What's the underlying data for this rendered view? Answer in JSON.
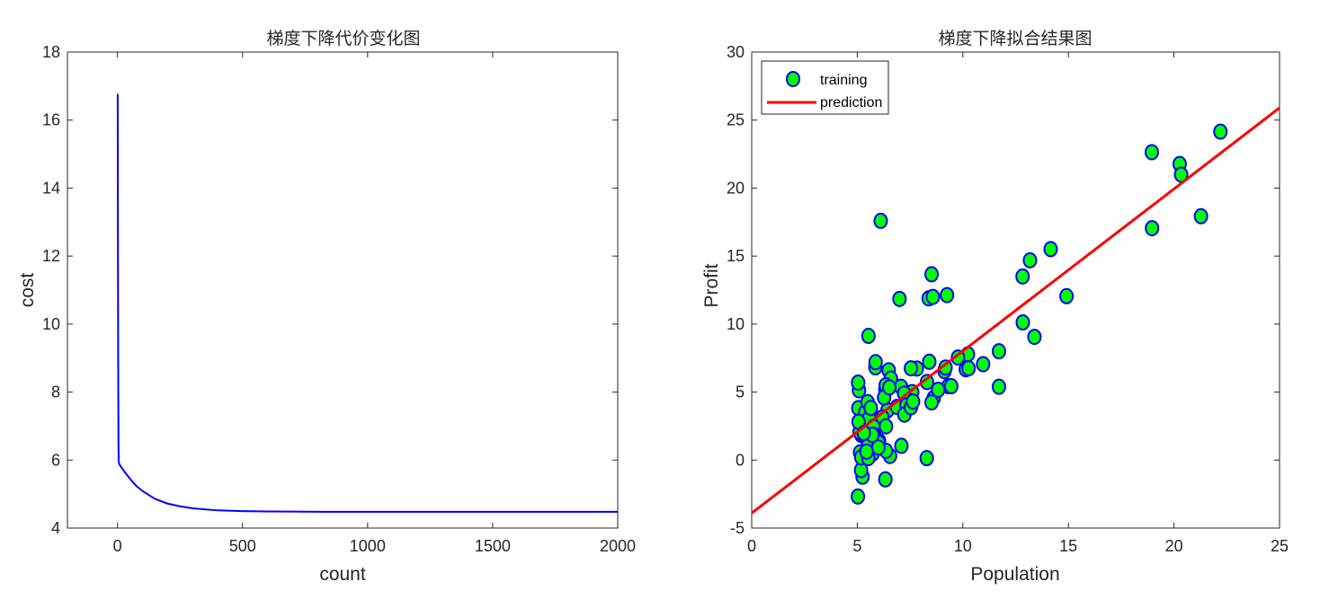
{
  "chart_data": [
    {
      "type": "line",
      "title": "梯度下降代价变化图",
      "xlabel": "count",
      "ylabel": "cost",
      "xlim": [
        -200,
        2000
      ],
      "ylim": [
        4,
        18
      ],
      "xticks": [
        0,
        500,
        1000,
        1500,
        2000
      ],
      "yticks": [
        4,
        6,
        8,
        10,
        12,
        14,
        16,
        18
      ],
      "grid": false,
      "colors": {
        "line": "#0000ff"
      },
      "series": [
        {
          "x": [
            1,
            2,
            3,
            4,
            5,
            8,
            10,
            20,
            30,
            50,
            75,
            100,
            150,
            200,
            250,
            300,
            400,
            500,
            600,
            700,
            800,
            1000,
            1200,
            1500,
            2000
          ],
          "y": [
            16.77,
            12.0,
            8.5,
            6.5,
            5.95,
            5.86,
            5.85,
            5.74,
            5.64,
            5.45,
            5.24,
            5.09,
            4.86,
            4.72,
            4.64,
            4.58,
            4.52,
            4.5,
            4.49,
            4.485,
            4.48,
            4.48,
            4.48,
            4.48,
            4.48
          ]
        }
      ]
    },
    {
      "type": "scatter",
      "title": "梯度下降拟合结果图",
      "xlabel": "Population",
      "ylabel": "Profit",
      "xlim": [
        0,
        25
      ],
      "ylim": [
        -5,
        30
      ],
      "xticks": [
        0,
        5,
        10,
        15,
        20,
        25
      ],
      "yticks": [
        -5,
        0,
        5,
        10,
        15,
        20,
        25,
        30
      ],
      "grid": false,
      "legend_position": "top-left",
      "colors": {
        "marker_fill": "#00ff00",
        "marker_edge": "#0000ff",
        "line": "#ff0000"
      },
      "series": [
        {
          "name": "training",
          "points": [
            [
              6.11,
              17.59
            ],
            [
              5.53,
              9.13
            ],
            [
              8.52,
              13.66
            ],
            [
              7.0,
              11.85
            ],
            [
              5.86,
              6.82
            ],
            [
              8.38,
              11.89
            ],
            [
              7.48,
              4.35
            ],
            [
              8.58,
              12.0
            ],
            [
              6.49,
              6.6
            ],
            [
              5.05,
              3.82
            ],
            [
              5.71,
              3.25
            ],
            [
              14.16,
              15.51
            ],
            [
              5.73,
              3.16
            ],
            [
              8.41,
              7.23
            ],
            [
              5.64,
              0.72
            ],
            [
              5.38,
              3.51
            ],
            [
              6.37,
              5.3
            ],
            [
              5.13,
              0.56
            ],
            [
              6.43,
              3.65
            ],
            [
              7.07,
              5.39
            ],
            [
              6.19,
              3.14
            ],
            [
              20.27,
              21.77
            ],
            [
              5.49,
              4.26
            ],
            [
              6.33,
              5.19
            ],
            [
              5.56,
              3.08
            ],
            [
              18.95,
              22.64
            ],
            [
              12.83,
              13.5
            ],
            [
              10.96,
              7.05
            ],
            [
              13.18,
              14.69
            ],
            [
              22.2,
              24.15
            ],
            [
              5.25,
              -1.22
            ],
            [
              6.59,
              5.99
            ],
            [
              9.25,
              12.13
            ],
            [
              5.19,
              1.85
            ],
            [
              9.13,
              6.54
            ],
            [
              8.62,
              4.56
            ],
            [
              12.84,
              10.12
            ],
            [
              6.35,
              5.5
            ],
            [
              5.41,
              0.56
            ],
            [
              6.88,
              3.91
            ],
            [
              11.71,
              5.39
            ],
            [
              5.77,
              2.44
            ],
            [
              7.82,
              6.73
            ],
            [
              7.09,
              1.05
            ],
            [
              5.08,
              5.13
            ],
            [
              5.8,
              1.84
            ],
            [
              11.71,
              8.0
            ],
            [
              5.54,
              1.02
            ],
            [
              7.54,
              6.75
            ],
            [
              5.31,
              1.84
            ],
            [
              7.42,
              4.29
            ],
            [
              7.6,
              5.0
            ],
            [
              6.03,
              1.42
            ],
            [
              6.33,
              -1.42
            ],
            [
              6.36,
              2.48
            ],
            [
              6.27,
              4.6
            ],
            [
              5.64,
              3.83
            ],
            [
              9.31,
              5.43
            ],
            [
              9.45,
              5.43
            ],
            [
              8.83,
              5.17
            ],
            [
              5.18,
              -0.74
            ],
            [
              21.28,
              17.93
            ],
            [
              14.91,
              12.05
            ],
            [
              18.96,
              17.05
            ],
            [
              7.22,
              4.89
            ],
            [
              8.3,
              5.74
            ],
            [
              10.24,
              7.78
            ],
            [
              5.5,
              1.02
            ],
            [
              20.34,
              20.99
            ],
            [
              10.14,
              6.68
            ],
            [
              7.33,
              4.02
            ],
            [
              6.01,
              1.28
            ],
            [
              7.23,
              3.34
            ],
            [
              5.03,
              -2.68
            ],
            [
              6.55,
              0.3
            ],
            [
              7.54,
              3.88
            ],
            [
              5.04,
              5.7
            ],
            [
              10.27,
              6.75
            ],
            [
              5.11,
              2.06
            ],
            [
              5.73,
              0.48
            ],
            [
              5.19,
              0.2
            ],
            [
              6.36,
              0.68
            ],
            [
              9.77,
              7.54
            ],
            [
              6.52,
              5.34
            ],
            [
              8.52,
              4.24
            ],
            [
              9.18,
              6.8
            ],
            [
              6.0,
              0.93
            ],
            [
              5.52,
              0.15
            ],
            [
              5.06,
              2.82
            ],
            [
              5.71,
              1.85
            ],
            [
              7.64,
              4.3
            ],
            [
              5.87,
              7.2
            ],
            [
              5.31,
              1.99
            ],
            [
              8.29,
              0.14
            ],
            [
              13.39,
              9.06
            ],
            [
              5.44,
              0.62
            ]
          ]
        },
        {
          "name": "prediction",
          "x": [
            0,
            25
          ],
          "y": [
            -3.9,
            25.9
          ]
        }
      ]
    }
  ]
}
